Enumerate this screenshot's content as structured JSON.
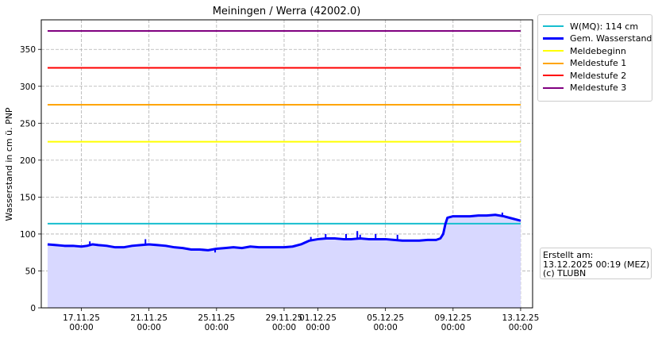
{
  "chart_data": {
    "type": "line",
    "title": "Meiningen / Werra (42002.0)",
    "xlabel": "",
    "ylabel": "Wasserstand in cm ü. PNP",
    "ylim": [
      0,
      390
    ],
    "y_ticks": [
      0,
      50,
      100,
      150,
      200,
      250,
      300,
      350
    ],
    "x_range": [
      "2025-11-14 15:00",
      "2025-12-13 17:00"
    ],
    "x_ticks": [
      {
        "date": "2025-11-17 00:00",
        "line1": "17.11.25",
        "line2": "00:00"
      },
      {
        "date": "2025-11-21 00:00",
        "line1": "21.11.25",
        "line2": "00:00"
      },
      {
        "date": "2025-11-25 00:00",
        "line1": "25.11.25",
        "line2": "00:00"
      },
      {
        "date": "2025-11-29 00:00",
        "line1": "29.11.25",
        "line2": "00:00"
      },
      {
        "date": "2025-12-01 00:00",
        "line1": "01.12.25",
        "line2": "00:00"
      },
      {
        "date": "2025-12-05 00:00",
        "line1": "05.12.25",
        "line2": "00:00"
      },
      {
        "date": "2025-12-09 00:00",
        "line1": "09.12.25",
        "line2": "00:00"
      },
      {
        "date": "2025-12-13 00:00",
        "line1": "13.12.25",
        "line2": "00:00"
      }
    ],
    "grid": true,
    "legend_position": "outside-top-right",
    "reference_lines": [
      {
        "name": "W(MQ): 114 cm",
        "value": 114,
        "color": "#17becf"
      },
      {
        "name": "Meldebeginn",
        "value": 225,
        "color": "#ffff00"
      },
      {
        "name": "Meldestufe 1",
        "value": 275,
        "color": "#ffa500"
      },
      {
        "name": "Meldestufe 2",
        "value": 325,
        "color": "#ff0000"
      },
      {
        "name": "Meldestufe 3",
        "value": 375,
        "color": "#800080"
      }
    ],
    "series": [
      {
        "name": "Gem. Wasserstand",
        "color": "#0000ff",
        "fill": "#d8d8ff",
        "points": [
          [
            "2025-11-15 00:00",
            86
          ],
          [
            "2025-11-15 12:00",
            85
          ],
          [
            "2025-11-16 00:00",
            84
          ],
          [
            "2025-11-16 12:00",
            84
          ],
          [
            "2025-11-17 00:00",
            83
          ],
          [
            "2025-11-17 08:00",
            84
          ],
          [
            "2025-11-17 16:00",
            86
          ],
          [
            "2025-11-18 00:00",
            85
          ],
          [
            "2025-11-18 12:00",
            84
          ],
          [
            "2025-11-19 00:00",
            82
          ],
          [
            "2025-11-19 12:00",
            82
          ],
          [
            "2025-11-20 00:00",
            84
          ],
          [
            "2025-11-20 12:00",
            85
          ],
          [
            "2025-11-21 00:00",
            86
          ],
          [
            "2025-11-21 12:00",
            85
          ],
          [
            "2025-11-22 00:00",
            84
          ],
          [
            "2025-11-22 12:00",
            82
          ],
          [
            "2025-11-23 00:00",
            81
          ],
          [
            "2025-11-23 12:00",
            79
          ],
          [
            "2025-11-24 00:00",
            79
          ],
          [
            "2025-11-24 12:00",
            78
          ],
          [
            "2025-11-25 00:00",
            80
          ],
          [
            "2025-11-25 12:00",
            81
          ],
          [
            "2025-11-26 00:00",
            82
          ],
          [
            "2025-11-26 12:00",
            81
          ],
          [
            "2025-11-27 00:00",
            83
          ],
          [
            "2025-11-27 12:00",
            82
          ],
          [
            "2025-11-28 00:00",
            82
          ],
          [
            "2025-11-28 12:00",
            82
          ],
          [
            "2025-11-29 00:00",
            82
          ],
          [
            "2025-11-29 12:00",
            83
          ],
          [
            "2025-11-30 00:00",
            86
          ],
          [
            "2025-11-30 12:00",
            91
          ],
          [
            "2025-12-01 00:00",
            93
          ],
          [
            "2025-12-01 12:00",
            94
          ],
          [
            "2025-12-02 00:00",
            94
          ],
          [
            "2025-12-02 12:00",
            93
          ],
          [
            "2025-12-03 00:00",
            93
          ],
          [
            "2025-12-03 12:00",
            94
          ],
          [
            "2025-12-04 00:00",
            93
          ],
          [
            "2025-12-04 12:00",
            93
          ],
          [
            "2025-12-05 00:00",
            93
          ],
          [
            "2025-12-05 12:00",
            92
          ],
          [
            "2025-12-06 00:00",
            91
          ],
          [
            "2025-12-06 12:00",
            91
          ],
          [
            "2025-12-07 00:00",
            91
          ],
          [
            "2025-12-07 12:00",
            92
          ],
          [
            "2025-12-08 00:00",
            92
          ],
          [
            "2025-12-08 06:00",
            94
          ],
          [
            "2025-12-08 10:00",
            100
          ],
          [
            "2025-12-08 13:00",
            113
          ],
          [
            "2025-12-08 16:00",
            122
          ],
          [
            "2025-12-09 00:00",
            124
          ],
          [
            "2025-12-09 12:00",
            124
          ],
          [
            "2025-12-10 00:00",
            124
          ],
          [
            "2025-12-10 12:00",
            125
          ],
          [
            "2025-12-11 00:00",
            125
          ],
          [
            "2025-12-11 12:00",
            126
          ],
          [
            "2025-12-12 00:00",
            124
          ],
          [
            "2025-12-12 12:00",
            121
          ],
          [
            "2025-12-13 00:00",
            118
          ]
        ],
        "spikes": [
          [
            "2025-11-17 12:00",
            90
          ],
          [
            "2025-11-20 19:00",
            93
          ],
          [
            "2025-11-24 22:00",
            75
          ],
          [
            "2025-11-30 14:00",
            96
          ],
          [
            "2025-12-01 11:00",
            100
          ],
          [
            "2025-12-02 16:00",
            100
          ],
          [
            "2025-12-03 08:00",
            104
          ],
          [
            "2025-12-03 12:00",
            99
          ],
          [
            "2025-12-04 10:00",
            100
          ],
          [
            "2025-12-05 17:00",
            99
          ],
          [
            "2025-12-11 22:00",
            129
          ]
        ]
      }
    ]
  },
  "legend": {
    "items": [
      {
        "label": "W(MQ): 114 cm",
        "color": "#17becf",
        "thick": false
      },
      {
        "label": "Gem. Wasserstand",
        "color": "#0000ff",
        "thick": true
      },
      {
        "label": "Meldebeginn",
        "color": "#ffff00",
        "thick": false
      },
      {
        "label": "Meldestufe 1",
        "color": "#ffa500",
        "thick": false
      },
      {
        "label": "Meldestufe 2",
        "color": "#ff0000",
        "thick": false
      },
      {
        "label": "Meldestufe 3",
        "color": "#800080",
        "thick": false
      }
    ]
  },
  "credit": {
    "line1": "Erstellt am:",
    "line2": "13.12.2025 00:19 (MEZ)",
    "line3": "(c) TLUBN"
  }
}
